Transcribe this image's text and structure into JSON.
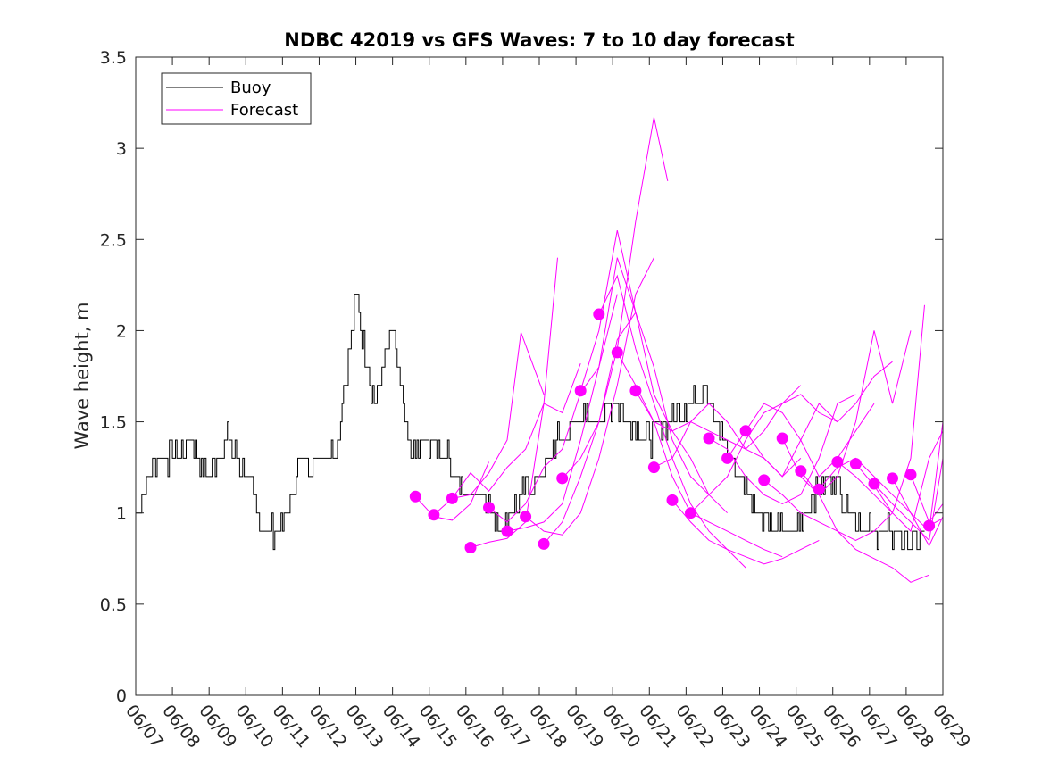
{
  "chart_data": {
    "type": "line",
    "title": "NDBC 42019 vs GFS Waves: 7 to 10 day forecast",
    "xlabel": "",
    "ylabel": "Wave height, m",
    "xlim": [
      "06/07",
      "06/29"
    ],
    "ylim": [
      0,
      3.5
    ],
    "yticks": [
      0,
      0.5,
      1,
      1.5,
      2,
      2.5,
      3,
      3.5
    ],
    "xtick_labels": [
      "06/07",
      "06/08",
      "06/09",
      "06/10",
      "06/11",
      "06/12",
      "06/13",
      "06/14",
      "06/15",
      "06/16",
      "06/17",
      "06/18",
      "06/19",
      "06/20",
      "06/21",
      "06/22",
      "06/23",
      "06/24",
      "06/25",
      "06/26",
      "06/27",
      "06/28",
      "06/29"
    ],
    "grid": false,
    "legend": {
      "position": "top-left",
      "entries": [
        {
          "label": "Buoy",
          "color": "#000000"
        },
        {
          "label": "Forecast",
          "color": "#ff00ff"
        }
      ]
    },
    "colors": {
      "buoy": "#000000",
      "forecast": "#ff00ff"
    },
    "series": [
      {
        "name": "Buoy",
        "x": [
          "06/07",
          "06/07 12:00",
          "06/08",
          "06/08 12:00",
          "06/09",
          "06/09 12:00",
          "06/10",
          "06/10 12:00",
          "06/11",
          "06/11 12:00",
          "06/12",
          "06/12 12:00",
          "06/13",
          "06/13 12:00",
          "06/14",
          "06/14 12:00",
          "06/15",
          "06/15 12:00",
          "06/16",
          "06/16 12:00",
          "06/17",
          "06/17 12:00",
          "06/18",
          "06/18 12:00",
          "06/19",
          "06/19 12:00",
          "06/20",
          "06/20 12:00",
          "06/21",
          "06/21 12:00",
          "06/22",
          "06/22 12:00",
          "06/23",
          "06/23 12:00",
          "06/24",
          "06/24 12:00",
          "06/25",
          "06/25 12:00",
          "06/26",
          "06/26 12:00",
          "06/27",
          "06/27 12:00",
          "06/28",
          "06/28 12:00"
        ],
        "values": [
          1.0,
          1.3,
          1.3,
          1.4,
          1.2,
          1.4,
          1.2,
          0.9,
          0.9,
          1.3,
          1.3,
          1.4,
          2.2,
          1.6,
          2.0,
          1.3,
          1.4,
          1.3,
          1.1,
          1.1,
          0.9,
          1.1,
          1.2,
          1.4,
          1.5,
          1.5,
          1.6,
          1.5,
          1.4,
          1.5,
          1.6,
          1.7,
          1.4,
          1.2,
          1.0,
          0.9,
          0.9,
          1.1,
          1.2,
          1.0,
          0.9,
          0.9,
          0.85,
          0.85
        ]
      },
      {
        "name": "Forecast",
        "x": [
          "06/14 15:00",
          "06/15 03:00",
          "06/15 15:00",
          "06/16 03:00",
          "06/16 15:00"
        ],
        "values": [
          1.09,
          0.98,
          0.96,
          1.05,
          1.28
        ]
      },
      {
        "name": "Forecast",
        "x": [
          "06/15 03:00",
          "06/15 15:00",
          "06/16 03:00",
          "06/16 15:00",
          "06/17 03:00",
          "06/17 12:00",
          "06/18 03:00"
        ],
        "values": [
          0.99,
          1.08,
          1.1,
          1.22,
          1.4,
          1.99,
          1.65
        ]
      },
      {
        "name": "Forecast",
        "x": [
          "06/15 15:00",
          "06/16 03:00",
          "06/16 15:00",
          "06/17 03:00",
          "06/17 15:00",
          "06/18 03:00",
          "06/18 15:00",
          "06/19 03:00"
        ],
        "values": [
          1.08,
          1.22,
          1.12,
          1.25,
          1.35,
          1.6,
          1.55,
          1.82
        ]
      },
      {
        "name": "Forecast",
        "x": [
          "06/16 03:00",
          "06/16 15:00",
          "06/17 03:00",
          "06/17 15:00",
          "06/18 03:00",
          "06/18 12:00"
        ],
        "values": [
          0.81,
          0.84,
          0.86,
          0.95,
          1.6,
          2.4
        ]
      },
      {
        "name": "Forecast",
        "x": [
          "06/16 15:00",
          "06/17 03:00",
          "06/17 15:00",
          "06/18 03:00",
          "06/18 15:00",
          "06/19 03:00",
          "06/19 15:00",
          "06/20 03:00"
        ],
        "values": [
          1.03,
          0.95,
          1.05,
          1.25,
          1.35,
          1.66,
          1.8,
          2.2
        ]
      },
      {
        "name": "Forecast",
        "x": [
          "06/17 03:00",
          "06/17 15:00",
          "06/18 03:00",
          "06/18 15:00",
          "06/19 03:00",
          "06/19 15:00",
          "06/20 03:00",
          "06/20 15:00"
        ],
        "values": [
          0.9,
          0.92,
          0.95,
          1.05,
          1.4,
          1.8,
          2.4,
          2.1
        ]
      },
      {
        "name": "Forecast",
        "x": [
          "06/17 15:00",
          "06/18 03:00",
          "06/18 15:00",
          "06/19 03:00",
          "06/19 15:00",
          "06/20 03:00",
          "06/20 15:00",
          "06/21 03:00"
        ],
        "values": [
          0.98,
          0.9,
          0.88,
          1.0,
          1.3,
          1.7,
          2.2,
          2.4
        ]
      },
      {
        "name": "Forecast",
        "x": [
          "06/18 03:00",
          "06/18 15:00",
          "06/19 03:00",
          "06/19 15:00",
          "06/20 03:00",
          "06/20 15:00",
          "06/21 03:00",
          "06/21 12:00"
        ],
        "values": [
          0.83,
          0.95,
          1.2,
          1.5,
          1.9,
          2.6,
          3.17,
          2.82
        ]
      },
      {
        "name": "Forecast",
        "x": [
          "06/18 15:00",
          "06/19 03:00",
          "06/19 15:00",
          "06/20 03:00",
          "06/20 15:00",
          "06/21 03:00",
          "06/21 15:00",
          "06/22 03:00",
          "06/22 15:00"
        ],
        "values": [
          1.19,
          1.3,
          1.5,
          1.95,
          2.1,
          1.8,
          1.4,
          1.2,
          1.1
        ]
      },
      {
        "name": "Forecast",
        "x": [
          "06/19 03:00",
          "06/19 15:00",
          "06/20 03:00",
          "06/20 15:00",
          "06/21 03:00",
          "06/21 15:00",
          "06/22 03:00",
          "06/22 15:00",
          "06/23 03:00"
        ],
        "values": [
          1.67,
          2.0,
          2.55,
          2.1,
          1.65,
          1.45,
          1.3,
          1.1,
          1.0
        ]
      },
      {
        "name": "Forecast",
        "x": [
          "06/19 15:00",
          "06/20 03:00",
          "06/20 15:00",
          "06/21 03:00",
          "06/21 15:00",
          "06/22 03:00",
          "06/22 15:00",
          "06/23 03:00",
          "06/23 15:00"
        ],
        "values": [
          2.09,
          2.3,
          1.9,
          1.6,
          1.3,
          1.05,
          0.9,
          0.8,
          0.7
        ]
      },
      {
        "name": "Forecast",
        "x": [
          "06/20 03:00",
          "06/20 15:00",
          "06/21 03:00",
          "06/21 15:00",
          "06/22 03:00",
          "06/22 15:00",
          "06/23 03:00",
          "06/23 15:00",
          "06/24 03:00",
          "06/24 15:00"
        ],
        "values": [
          1.88,
          1.7,
          1.5,
          1.2,
          1.0,
          0.95,
          0.9,
          0.85,
          0.8,
          0.76
        ]
      },
      {
        "name": "Forecast",
        "x": [
          "06/20 15:00",
          "06/21 03:00",
          "06/21 15:00",
          "06/22 03:00",
          "06/22 15:00",
          "06/23 03:00",
          "06/23 15:00",
          "06/24 03:00",
          "06/24 15:00",
          "06/25 03:00"
        ],
        "values": [
          1.67,
          1.5,
          1.45,
          1.5,
          1.45,
          1.4,
          1.35,
          1.3,
          1.2,
          1.3
        ]
      },
      {
        "name": "Forecast",
        "x": [
          "06/21 03:00",
          "06/21 15:00",
          "06/22 03:00",
          "06/22 15:00",
          "06/23 03:00",
          "06/23 15:00",
          "06/24 03:00",
          "06/24 15:00",
          "06/25 03:00"
        ],
        "values": [
          1.25,
          1.3,
          1.5,
          1.6,
          1.5,
          1.35,
          1.45,
          1.6,
          1.7
        ]
      },
      {
        "name": "Forecast",
        "x": [
          "06/21 15:00",
          "06/22 03:00",
          "06/22 15:00",
          "06/23 03:00",
          "06/23 15:00",
          "06/24 03:00",
          "06/24 15:00",
          "06/25 03:00",
          "06/25 15:00"
        ],
        "values": [
          1.07,
          0.95,
          0.85,
          0.8,
          0.76,
          0.72,
          0.75,
          0.8,
          0.85
        ]
      },
      {
        "name": "Forecast",
        "x": [
          "06/22 03:00",
          "06/22 15:00",
          "06/23 03:00",
          "06/23 15:00",
          "06/24 03:00",
          "06/24 15:00",
          "06/25 03:00",
          "06/25 15:00",
          "06/26 03:00"
        ],
        "values": [
          1.0,
          1.1,
          1.2,
          1.4,
          1.55,
          1.6,
          1.65,
          1.55,
          1.5
        ]
      },
      {
        "name": "Forecast",
        "x": [
          "06/22 15:00",
          "06/23 03:00",
          "06/23 15:00",
          "06/24 03:00",
          "06/24 15:00",
          "06/25 03:00",
          "06/25 15:00",
          "06/26 03:00",
          "06/26 15:00"
        ],
        "values": [
          1.41,
          1.35,
          1.2,
          1.1,
          1.05,
          1.1,
          1.3,
          1.6,
          1.65
        ]
      },
      {
        "name": "Forecast",
        "x": [
          "06/23 03:00",
          "06/23 15:00",
          "06/24 03:00",
          "06/24 15:00",
          "06/25 03:00",
          "06/25 15:00",
          "06/26 03:00",
          "06/26 15:00",
          "06/27 03:00"
        ],
        "values": [
          1.3,
          1.45,
          1.6,
          1.55,
          1.4,
          1.2,
          1.3,
          1.45,
          1.6
        ]
      },
      {
        "name": "Forecast",
        "x": [
          "06/23 15:00",
          "06/24 03:00",
          "06/24 15:00",
          "06/25 03:00",
          "06/25 15:00",
          "06/26 03:00",
          "06/26 15:00",
          "06/27 03:00",
          "06/27 15:00"
        ],
        "values": [
          1.45,
          1.3,
          1.2,
          1.4,
          1.6,
          1.5,
          1.6,
          1.75,
          1.83
        ]
      },
      {
        "name": "Forecast",
        "x": [
          "06/24 03:00",
          "06/24 15:00",
          "06/25 03:00",
          "06/25 15:00",
          "06/26 03:00",
          "06/26 15:00",
          "06/27 03:00",
          "06/27 15:00"
        ],
        "values": [
          1.18,
          1.1,
          1.0,
          0.95,
          0.9,
          0.85,
          0.9,
          1.0
        ]
      },
      {
        "name": "Forecast",
        "x": [
          "06/24 15:00",
          "06/25 03:00",
          "06/25 15:00",
          "06/26 03:00",
          "06/26 15:00",
          "06/27 03:00",
          "06/27 15:00",
          "06/28 03:00"
        ],
        "values": [
          1.41,
          1.2,
          1.1,
          1.2,
          1.5,
          2.0,
          1.6,
          2.0
        ]
      },
      {
        "name": "Forecast",
        "x": [
          "06/25 03:00",
          "06/25 15:00",
          "06/26 03:00",
          "06/26 15:00",
          "06/27 03:00",
          "06/27 15:00",
          "06/28 03:00",
          "06/28 15:00"
        ],
        "values": [
          1.23,
          1.1,
          0.9,
          0.8,
          0.75,
          0.7,
          0.62,
          0.66
        ]
      },
      {
        "name": "Forecast",
        "x": [
          "06/25 15:00",
          "06/26 03:00",
          "06/26 15:00",
          "06/27 03:00",
          "06/27 15:00",
          "06/28 03:00",
          "06/28 15:00",
          "06/29 00:00"
        ],
        "values": [
          1.13,
          1.25,
          1.3,
          1.2,
          1.1,
          1.0,
          0.9,
          1.5
        ]
      },
      {
        "name": "Forecast",
        "x": [
          "06/26 03:00",
          "06/26 15:00",
          "06/27 03:00",
          "06/27 15:00",
          "06/28 03:00",
          "06/28 12:00"
        ],
        "values": [
          1.28,
          1.2,
          1.1,
          1.0,
          1.3,
          2.14
        ]
      },
      {
        "name": "Forecast",
        "x": [
          "06/26 15:00",
          "06/27 03:00",
          "06/27 15:00",
          "06/28 03:00",
          "06/28 15:00",
          "06/29 00:00"
        ],
        "values": [
          1.27,
          1.15,
          1.0,
          0.9,
          1.3,
          1.45
        ]
      },
      {
        "name": "Forecast",
        "x": [
          "06/27 03:00",
          "06/27 15:00",
          "06/28 03:00",
          "06/28 15:00",
          "06/29 00:00"
        ],
        "values": [
          1.16,
          1.05,
          0.95,
          0.85,
          1.3
        ]
      },
      {
        "name": "Forecast",
        "x": [
          "06/27 15:00",
          "06/28 03:00",
          "06/28 15:00",
          "06/29 00:00"
        ],
        "values": [
          1.19,
          1.0,
          0.82,
          0.98
        ]
      },
      {
        "name": "Forecast",
        "x": [
          "06/28 03:00",
          "06/28 15:00",
          "06/29 00:00"
        ],
        "values": [
          1.21,
          0.95,
          1.05
        ]
      },
      {
        "name": "Forecast",
        "x": [
          "06/28 15:00",
          "06/29 00:00"
        ],
        "values": [
          0.93,
          0.97
        ]
      }
    ]
  }
}
